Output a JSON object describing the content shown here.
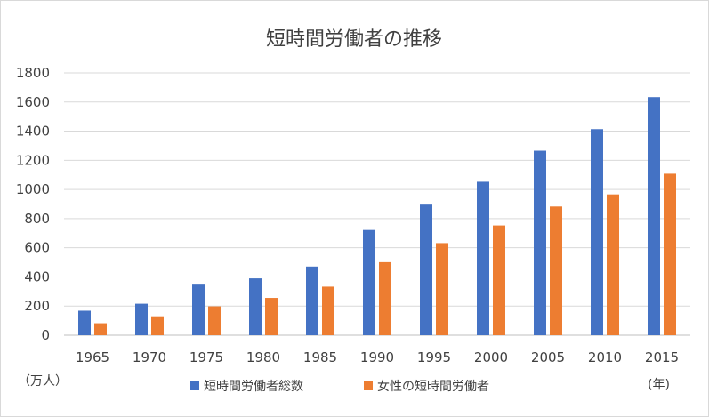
{
  "chart_data": {
    "type": "bar",
    "title": "短時間労働者の推移",
    "categories": [
      "1965",
      "1970",
      "1975",
      "1980",
      "1985",
      "1990",
      "1995",
      "2000",
      "2005",
      "2010",
      "2015"
    ],
    "series": [
      {
        "name": "短時間労働者総数",
        "color": "#4472c4",
        "values": [
          168,
          216,
          353,
          390,
          471,
          722,
          896,
          1053,
          1266,
          1414,
          1634
        ]
      },
      {
        "name": "女性の短時間労働者",
        "color": "#ed7d31",
        "values": [
          82,
          130,
          198,
          256,
          333,
          501,
          632,
          753,
          883,
          966,
          1108
        ]
      }
    ],
    "y_ticks": [
      0,
      200,
      400,
      600,
      800,
      1000,
      1200,
      1400,
      1600,
      1800
    ],
    "ylim": [
      0,
      1800
    ],
    "y_unit": "（万人）",
    "x_unit": "(年)",
    "grid": true,
    "legend_position": "bottom"
  }
}
